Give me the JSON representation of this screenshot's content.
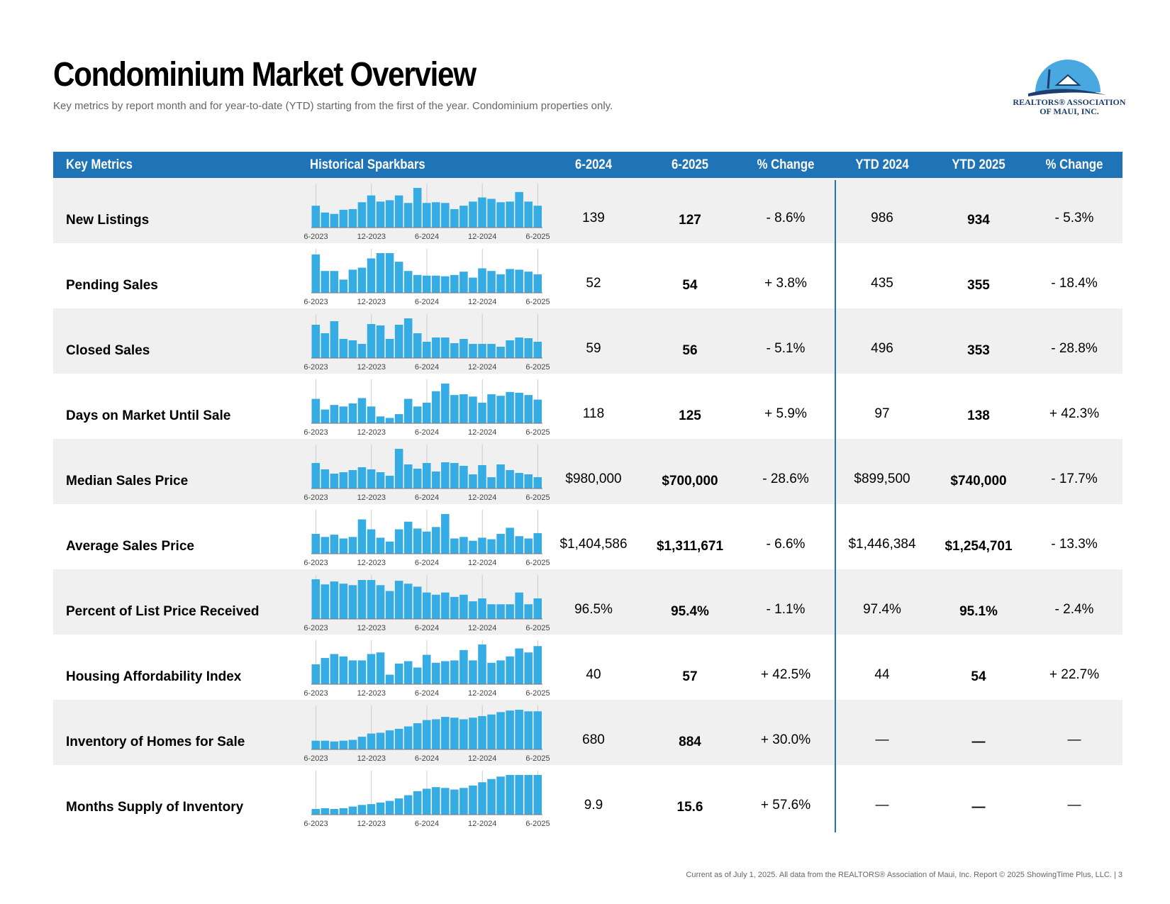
{
  "header": {
    "title": "Condominium Market Overview",
    "subtitle": "Key metrics by report month and for year-to-date (YTD) starting from the first of the year. Condominium properties only.",
    "logo_line1": "REALTORS® ASSOCIATION",
    "logo_line2": "OF MAUI, INC."
  },
  "table": {
    "columns": [
      "Key Metrics",
      "Historical Sparkbars",
      "6-2024",
      "6-2025",
      "% Change",
      "YTD 2024",
      "YTD 2025",
      "% Change"
    ],
    "spark_labels": [
      "6-2023",
      "12-2023",
      "6-2024",
      "12-2024",
      "6-2025"
    ],
    "rows": [
      {
        "metric": "New Listings",
        "cells": [
          "139",
          "127",
          "- 8.6%",
          "986",
          "934",
          "- 5.3%"
        ],
        "spark": [
          32,
          22,
          20,
          26,
          27,
          37,
          47,
          38,
          40,
          47,
          36,
          58,
          36,
          37,
          36,
          27,
          32,
          38,
          44,
          42,
          37,
          38,
          52,
          38,
          32
        ]
      },
      {
        "metric": "Pending Sales",
        "cells": [
          "52",
          "54",
          "+ 3.8%",
          "435",
          "355",
          "- 18.4%"
        ],
        "spark": [
          58,
          33,
          33,
          20,
          35,
          38,
          52,
          60,
          60,
          47,
          33,
          27,
          26,
          26,
          25,
          27,
          32,
          23,
          37,
          33,
          28,
          36,
          35,
          32,
          28
        ]
      },
      {
        "metric": "Closed Sales",
        "cells": [
          "59",
          "56",
          "- 5.1%",
          "496",
          "353",
          "- 28.8%"
        ],
        "spark": [
          47,
          35,
          52,
          27,
          25,
          20,
          48,
          46,
          27,
          47,
          56,
          35,
          23,
          29,
          29,
          21,
          27,
          20,
          20,
          20,
          16,
          25,
          29,
          28,
          23
        ]
      },
      {
        "metric": "Days on Market Until Sale",
        "cells": [
          "118",
          "125",
          "+ 5.9%",
          "97",
          "138",
          "+ 42.3%"
        ],
        "spark": [
          32,
          18,
          24,
          22,
          26,
          33,
          22,
          9,
          7,
          12,
          32,
          22,
          27,
          42,
          52,
          37,
          38,
          35,
          27,
          38,
          36,
          41,
          40,
          37,
          31
        ]
      },
      {
        "metric": "Median Sales Price",
        "cells": [
          "$980,000",
          "$700,000",
          "- 28.6%",
          "$899,500",
          "$740,000",
          "- 17.7%"
        ],
        "spark": [
          36,
          27,
          21,
          23,
          26,
          30,
          27,
          23,
          18,
          56,
          34,
          28,
          36,
          24,
          37,
          36,
          32,
          20,
          33,
          16,
          34,
          26,
          22,
          20,
          16
        ]
      },
      {
        "metric": "Average Sales Price",
        "cells": [
          "$1,404,586",
          "$1,311,671",
          "- 6.6%",
          "$1,446,384",
          "$1,254,701",
          "- 13.3%"
        ],
        "spark": [
          26,
          22,
          25,
          20,
          22,
          45,
          32,
          21,
          16,
          32,
          42,
          33,
          29,
          35,
          52,
          20,
          22,
          17,
          21,
          19,
          26,
          34,
          23,
          20,
          27
        ]
      },
      {
        "metric": "Percent of List Price Received",
        "cells": [
          "96.5%",
          "95.4%",
          "- 1.1%",
          "97.4%",
          "95.1%",
          "- 2.4%"
        ],
        "spark": [
          54,
          47,
          51,
          48,
          46,
          53,
          53,
          46,
          38,
          52,
          48,
          44,
          36,
          33,
          36,
          30,
          33,
          24,
          28,
          20,
          20,
          20,
          36,
          20,
          28
        ]
      },
      {
        "metric": "Housing Affordability Index",
        "cells": [
          "40",
          "57",
          "+ 42.5%",
          "44",
          "54",
          "+ 22.7%"
        ],
        "spark": [
          25,
          33,
          38,
          35,
          30,
          30,
          38,
          40,
          12,
          26,
          29,
          21,
          37,
          27,
          29,
          30,
          43,
          30,
          50,
          27,
          30,
          35,
          45,
          40,
          48
        ]
      },
      {
        "metric": "Inventory of Homes for Sale",
        "cells": [
          "680",
          "884",
          "+ 30.0%",
          "—",
          "—",
          "—"
        ],
        "spark": [
          11,
          11,
          10,
          11,
          12,
          16,
          20,
          21,
          24,
          26,
          29,
          33,
          37,
          38,
          41,
          40,
          38,
          40,
          42,
          44,
          47,
          49,
          50,
          48,
          48
        ]
      },
      {
        "metric": "Months Supply of Inventory",
        "cells": [
          "9.9",
          "15.6",
          "+ 57.6%",
          "—",
          "—",
          "—"
        ],
        "spark": [
          7,
          8,
          7,
          8,
          10,
          12,
          13,
          15,
          17,
          20,
          24,
          29,
          32,
          34,
          33,
          31,
          33,
          36,
          40,
          44,
          47,
          49,
          49,
          49,
          49
        ]
      }
    ]
  },
  "footer": {
    "note": "Current as of July 1, 2025. All data from the REALTORS® Association of Maui, Inc. Report © 2025 ShowingTime Plus, LLC.  |  3"
  }
}
